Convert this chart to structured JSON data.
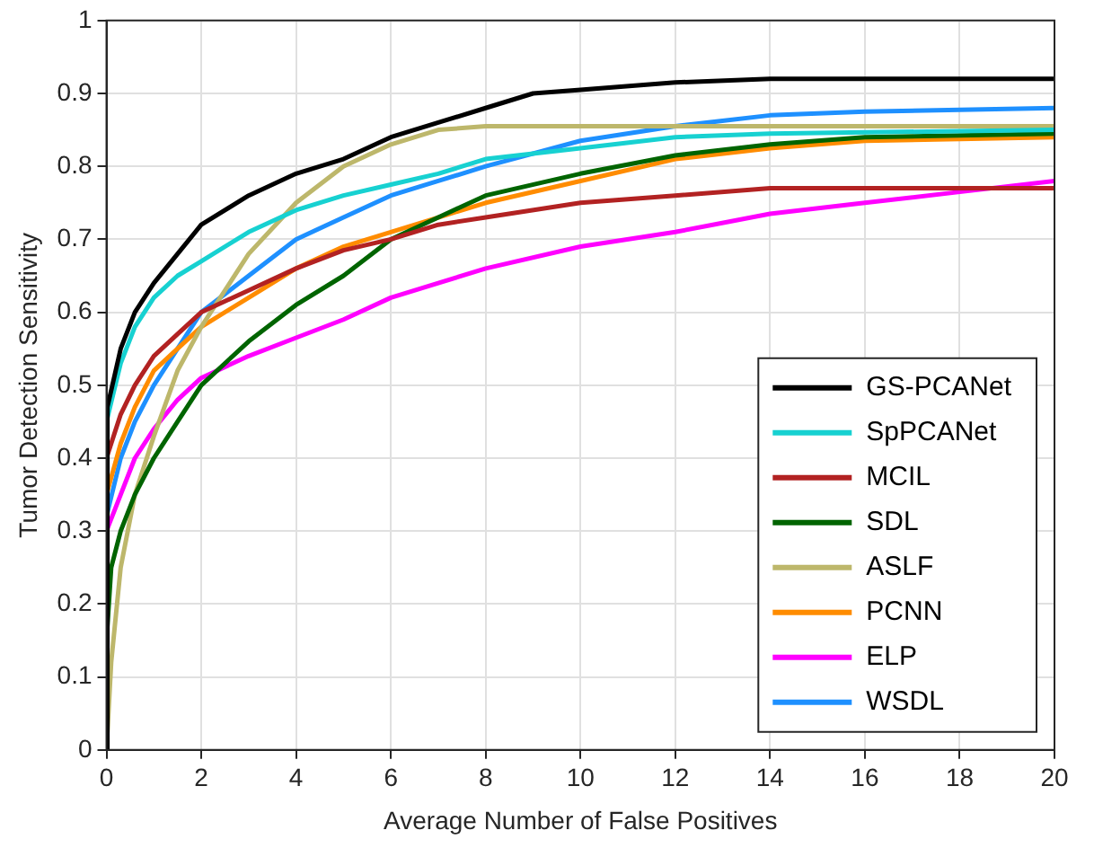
{
  "chart_data": {
    "type": "line",
    "xlabel": "Average Number of False Positives",
    "ylabel": "Tumor Detection Sensitivity",
    "xlim": [
      0,
      20
    ],
    "xticks": [
      0,
      2,
      4,
      6,
      8,
      10,
      12,
      14,
      16,
      18,
      20
    ],
    "ylim": [
      0,
      1
    ],
    "yticks": [
      0,
      0.1,
      0.2,
      0.3,
      0.4,
      0.5,
      0.6,
      0.7,
      0.8,
      0.9,
      1
    ],
    "grid": true,
    "legend": "bottom right",
    "marker": "none",
    "line_style": "solid",
    "series": [
      {
        "name": "GS-PCANet",
        "color": "#000000",
        "x": [
          0,
          0.02,
          0.3,
          0.6,
          1,
          1.5,
          2,
          3,
          4,
          5,
          6,
          7,
          8,
          9,
          10,
          12,
          14,
          16,
          20
        ],
        "values": [
          0,
          0.47,
          0.55,
          0.6,
          0.64,
          0.68,
          0.72,
          0.76,
          0.79,
          0.81,
          0.84,
          0.86,
          0.88,
          0.9,
          0.905,
          0.915,
          0.92,
          0.92,
          0.92
        ]
      },
      {
        "name": "SpPCANet",
        "color": "#17d1d1",
        "x": [
          0,
          0.3,
          0.6,
          1,
          1.5,
          2,
          3,
          4,
          5,
          6,
          7,
          8,
          10,
          12,
          14,
          20
        ],
        "values": [
          0.45,
          0.53,
          0.58,
          0.62,
          0.65,
          0.67,
          0.71,
          0.74,
          0.76,
          0.775,
          0.79,
          0.81,
          0.825,
          0.84,
          0.845,
          0.85
        ]
      },
      {
        "name": "MCIL",
        "color": "#b22222",
        "x": [
          0,
          0.3,
          0.6,
          1,
          1.5,
          2,
          3,
          4,
          5,
          6,
          7,
          8,
          10,
          12,
          14,
          20
        ],
        "values": [
          0.4,
          0.46,
          0.5,
          0.54,
          0.57,
          0.6,
          0.63,
          0.66,
          0.685,
          0.7,
          0.72,
          0.73,
          0.75,
          0.76,
          0.77,
          0.77
        ]
      },
      {
        "name": "SDL",
        "color": "#006400",
        "x": [
          0,
          0.1,
          0.3,
          0.6,
          1,
          1.5,
          2,
          3,
          4,
          5,
          6,
          7,
          8,
          10,
          12,
          14,
          16,
          20
        ],
        "values": [
          0.15,
          0.25,
          0.3,
          0.35,
          0.4,
          0.45,
          0.5,
          0.56,
          0.61,
          0.65,
          0.7,
          0.73,
          0.76,
          0.79,
          0.815,
          0.83,
          0.84,
          0.845
        ]
      },
      {
        "name": "ASLF",
        "color": "#bdb76b",
        "x": [
          0,
          0.1,
          0.3,
          0.6,
          1,
          1.5,
          2,
          3,
          4,
          5,
          6,
          7,
          8,
          20
        ],
        "values": [
          0,
          0.12,
          0.25,
          0.35,
          0.43,
          0.52,
          0.58,
          0.68,
          0.75,
          0.8,
          0.83,
          0.85,
          0.855,
          0.855
        ]
      },
      {
        "name": "PCNN",
        "color": "#ff8c00",
        "x": [
          0,
          0.3,
          0.6,
          1,
          1.5,
          2,
          3,
          4,
          5,
          6,
          7,
          8,
          10,
          12,
          14,
          16,
          20
        ],
        "values": [
          0.35,
          0.42,
          0.47,
          0.52,
          0.55,
          0.58,
          0.62,
          0.66,
          0.69,
          0.71,
          0.73,
          0.75,
          0.78,
          0.81,
          0.825,
          0.835,
          0.84
        ]
      },
      {
        "name": "ELP",
        "color": "#ff00ff",
        "x": [
          0,
          0.3,
          0.6,
          1,
          1.5,
          2,
          3,
          4,
          5,
          6,
          7,
          8,
          10,
          12,
          14,
          16,
          18,
          20
        ],
        "values": [
          0.3,
          0.35,
          0.4,
          0.44,
          0.48,
          0.51,
          0.54,
          0.565,
          0.59,
          0.62,
          0.64,
          0.66,
          0.69,
          0.71,
          0.735,
          0.75,
          0.765,
          0.78
        ]
      },
      {
        "name": "WSDL",
        "color": "#1e90ff",
        "x": [
          0,
          0.3,
          0.6,
          1,
          1.5,
          2,
          3,
          4,
          5,
          6,
          7,
          8,
          10,
          12,
          14,
          16,
          20
        ],
        "values": [
          0.32,
          0.4,
          0.45,
          0.5,
          0.55,
          0.6,
          0.65,
          0.7,
          0.73,
          0.76,
          0.78,
          0.8,
          0.835,
          0.855,
          0.87,
          0.875,
          0.88
        ]
      }
    ]
  }
}
